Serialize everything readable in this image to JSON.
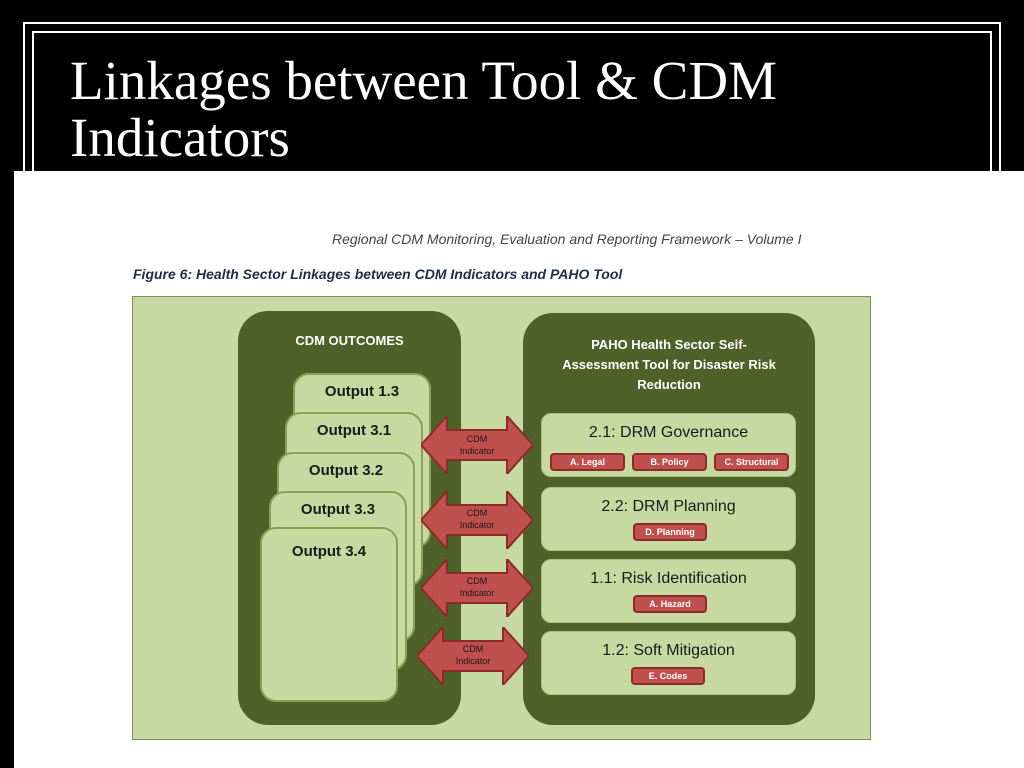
{
  "slide": {
    "title_line1": "Linkages between Tool & CDM",
    "title_line2": "Indicators"
  },
  "document": {
    "running_header": "Regional CDM Monitoring, Evaluation and Reporting Framework – Volume I",
    "figure_caption": "Figure 6: Health Sector Linkages between CDM Indicators and PAHO Tool"
  },
  "left_panel": {
    "title": "CDM OUTCOMES",
    "outputs": [
      "Output 1.3",
      "Output 3.1",
      "Output 3.2",
      "Output 3.3",
      "Output 3.4"
    ]
  },
  "right_panel": {
    "title_line1": "PAHO Health Sector Self-",
    "title_line2": "Assessment Tool for Disaster Risk",
    "title_line3": "Reduction",
    "sections": [
      {
        "title": "2.1: DRM Governance",
        "tags": [
          "A. Legal",
          "B. Policy",
          "C. Structural"
        ]
      },
      {
        "title": "2.2: DRM Planning",
        "tags": [
          "D. Planning"
        ]
      },
      {
        "title": "1.1: Risk Identification",
        "tags": [
          "A. Hazard"
        ]
      },
      {
        "title": "1.2: Soft Mitigation",
        "tags": [
          "E. Codes"
        ]
      }
    ]
  },
  "arrows": [
    {
      "line1": "CDM",
      "line2": "Indicator"
    },
    {
      "line1": "CDM",
      "line2": "Indicator"
    },
    {
      "line1": "CDM",
      "line2": "Indicator"
    },
    {
      "line1": "CDM",
      "line2": "Indicator"
    }
  ],
  "colors": {
    "panel_dark": "#4e6128",
    "panel_light": "#c5d9a0",
    "tag_red": "#c0504d",
    "arrow_red": "#c0504d"
  }
}
